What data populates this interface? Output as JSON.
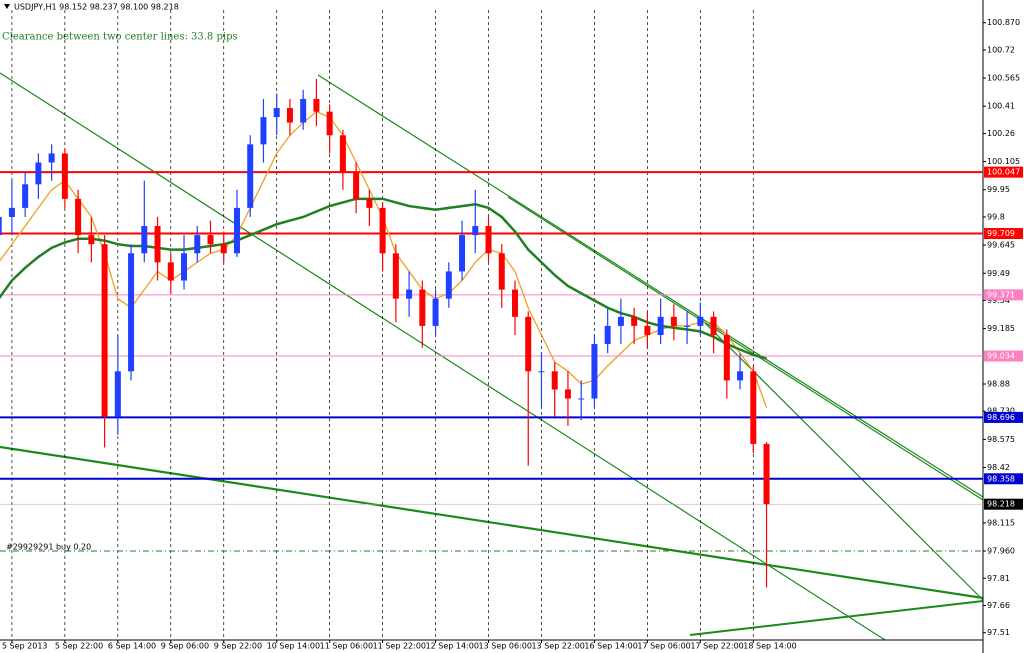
{
  "chart_data": {
    "type": "candlestick",
    "title": "USDJPY,H1 98.152 98.237 98.100 98.218",
    "annotation": "Clearance between two center lines:  33.8 pips",
    "xlim": [
      -3.6,
      293.4
    ],
    "ylim": [
      97.47,
      100.94
    ],
    "xticks": [
      {
        "value": 0,
        "label": "5 Sep 2013"
      },
      {
        "value": 16,
        "label": "5 Sep 22:00"
      },
      {
        "value": 32,
        "label": "6 Sep 14:00"
      },
      {
        "value": 48,
        "label": "9 Sep 06:00"
      },
      {
        "value": 64,
        "label": "9 Sep 22:00"
      },
      {
        "value": 80,
        "label": "10 Sep 14:00"
      },
      {
        "value": 96,
        "label": "11 Sep 06:00"
      },
      {
        "value": 112,
        "label": "11 Sep 22:00"
      },
      {
        "value": 128,
        "label": "12 Sep 14:00"
      },
      {
        "value": 144,
        "label": "13 Sep 06:00"
      },
      {
        "value": 160,
        "label": "13 Sep 22:00"
      },
      {
        "value": 176,
        "label": "16 Sep 14:00"
      },
      {
        "value": 192,
        "label": "17 Sep 06:00"
      },
      {
        "value": 208,
        "label": "17 Sep 22:00"
      },
      {
        "value": 224,
        "label": "18 Sep 14:00"
      }
    ],
    "yticks": [
      {
        "value": 100.87,
        "label": "100.870"
      },
      100.72,
      100.565,
      100.41,
      100.26,
      100.105,
      99.95,
      99.8,
      99.645,
      99.49,
      99.34,
      99.185,
      98.88,
      {
        "value": 98.73,
        "label": "98.730"
      },
      98.575,
      98.42,
      98.115,
      {
        "value": 97.96,
        "label": "97.960"
      },
      97.81,
      97.66,
      97.51
    ],
    "grid": true,
    "up_color": "#2040ff",
    "down_color": "#ff0000",
    "x": [
      -4,
      0,
      4,
      8,
      12,
      16,
      20,
      24,
      28,
      32,
      36,
      40,
      44,
      48,
      52,
      56,
      60,
      64,
      68,
      72,
      76,
      80,
      84,
      88,
      92,
      96,
      100,
      104,
      108,
      112,
      116,
      120,
      124,
      128,
      132,
      136,
      140,
      144,
      148,
      152,
      156,
      160,
      164,
      168,
      172,
      176,
      180,
      184,
      188,
      192,
      196,
      200,
      204,
      208,
      212,
      216,
      220,
      224,
      228
    ],
    "open": [
      99.7,
      99.8,
      99.85,
      99.98,
      100.1,
      100.15,
      99.9,
      99.7,
      99.65,
      98.7,
      98.95,
      99.6,
      99.75,
      99.55,
      99.45,
      99.6,
      99.7,
      99.65,
      99.6,
      99.85,
      100.2,
      100.35,
      100.4,
      100.32,
      100.45,
      100.38,
      100.25,
      100.05,
      99.9,
      99.85,
      99.6,
      99.35,
      99.4,
      99.2,
      99.35,
      99.5,
      99.7,
      99.75,
      99.6,
      99.4,
      99.25,
      98.95,
      98.95,
      98.85,
      98.8,
      98.8,
      99.1,
      99.2,
      99.25,
      99.2,
      99.15,
      99.25,
      99.2,
      99.2,
      99.25,
      99.15,
      98.9,
      98.95,
      98.55
    ],
    "high": [
      99.9,
      100,
      100.05,
      100.15,
      100.2,
      100.18,
      99.95,
      99.8,
      99.7,
      99.15,
      99.65,
      100,
      99.8,
      99.6,
      99.7,
      99.75,
      99.78,
      99.72,
      99.95,
      100.25,
      100.45,
      100.48,
      100.45,
      100.5,
      100.56,
      100.42,
      100.28,
      100.1,
      99.95,
      99.88,
      99.65,
      99.5,
      99.45,
      99.4,
      99.55,
      99.78,
      99.95,
      99.8,
      99.65,
      99.45,
      99.28,
      99.05,
      99,
      98.95,
      98.9,
      99.15,
      99.3,
      99.35,
      99.3,
      99.28,
      99.35,
      99.32,
      99.28,
      99.33,
      99.28,
      99.18,
      99.05,
      98.98,
      98.56
    ],
    "low": [
      99.55,
      99.7,
      99.8,
      99.9,
      100,
      99.85,
      99.6,
      99.55,
      98.53,
      98.6,
      98.9,
      99.55,
      99.45,
      99.38,
      99.4,
      99.55,
      99.6,
      99.55,
      99.58,
      99.8,
      100.1,
      100.25,
      100.25,
      100.28,
      100.3,
      100.15,
      99.95,
      99.82,
      99.75,
      99.5,
      99.22,
      99.25,
      99.08,
      99.15,
      99.3,
      99.45,
      99.6,
      99.55,
      99.3,
      99.15,
      98.43,
      98.75,
      98.7,
      98.65,
      98.68,
      98.75,
      99.05,
      99.1,
      99.1,
      99.08,
      99.1,
      99.12,
      99.1,
      99.15,
      99.05,
      98.8,
      98.85,
      98.5,
      97.76
    ],
    "close": [
      99.8,
      99.85,
      99.98,
      100.1,
      100.15,
      99.9,
      99.7,
      99.65,
      98.7,
      98.95,
      99.6,
      99.75,
      99.55,
      99.45,
      99.6,
      99.7,
      99.65,
      99.6,
      99.85,
      100.2,
      100.35,
      100.4,
      100.32,
      100.45,
      100.38,
      100.25,
      100.05,
      99.9,
      99.85,
      99.6,
      99.35,
      99.4,
      99.2,
      99.35,
      99.5,
      99.7,
      99.75,
      99.6,
      99.4,
      99.25,
      98.95,
      98.95,
      98.85,
      98.8,
      98.8,
      99.1,
      99.2,
      99.25,
      99.2,
      99.15,
      99.25,
      99.2,
      99.2,
      99.25,
      99.15,
      98.9,
      98.95,
      98.55,
      98.218
    ],
    "series": [
      {
        "color": "#f0a020",
        "values": [
          99.55,
          99.65,
          99.75,
          99.85,
          99.95,
          100,
          99.9,
          99.8,
          99.6,
          99.35,
          99.3,
          99.4,
          99.5,
          99.45,
          99.5,
          99.55,
          99.6,
          99.62,
          99.7,
          99.85,
          100,
          100.15,
          100.25,
          100.32,
          100.38,
          100.35,
          100.25,
          100.1,
          99.95,
          99.8,
          99.6,
          99.5,
          99.4,
          99.35,
          99.38,
          99.45,
          99.55,
          99.62,
          99.6,
          99.5,
          99.3,
          99.15,
          99,
          98.95,
          98.88,
          98.9,
          98.98,
          99.05,
          99.12,
          99.15,
          99.18,
          99.2,
          99.2,
          99.22,
          99.22,
          99.15,
          99.05,
          98.95,
          98.75
        ]
      },
      {
        "color": "#208020",
        "values": [
          99.35,
          99.45,
          99.52,
          99.58,
          99.63,
          99.66,
          99.68,
          99.68,
          99.67,
          99.65,
          99.64,
          99.64,
          99.63,
          99.62,
          99.62,
          99.63,
          99.64,
          99.65,
          99.67,
          99.7,
          99.73,
          99.76,
          99.78,
          99.8,
          99.83,
          99.86,
          99.88,
          99.9,
          99.9,
          99.9,
          99.88,
          99.86,
          99.85,
          99.84,
          99.85,
          99.86,
          99.87,
          99.85,
          99.8,
          99.72,
          99.62,
          99.55,
          99.48,
          99.42,
          99.38,
          99.34,
          99.3,
          99.27,
          99.25,
          99.22,
          99.2,
          99.19,
          99.18,
          99.17,
          99.14,
          99.1,
          99.07,
          99.04,
          99.02
        ]
      }
    ],
    "levels": [
      {
        "value": 100.047,
        "color": "#ff0000"
      },
      {
        "value": 99.709,
        "color": "#ff0000"
      },
      {
        "value": 99.371,
        "color": "#ff80c0"
      },
      {
        "value": 99.034,
        "color": "#ff80c0"
      },
      {
        "value": 98.696,
        "color": "#0000d0"
      },
      {
        "value": 98.358,
        "color": "#0000d0"
      },
      {
        "value": 98.218,
        "color": "#000000"
      }
    ],
    "order": {
      "label": "#29929291 buy 0.20",
      "value": 97.96,
      "color": "#208020"
    }
  }
}
